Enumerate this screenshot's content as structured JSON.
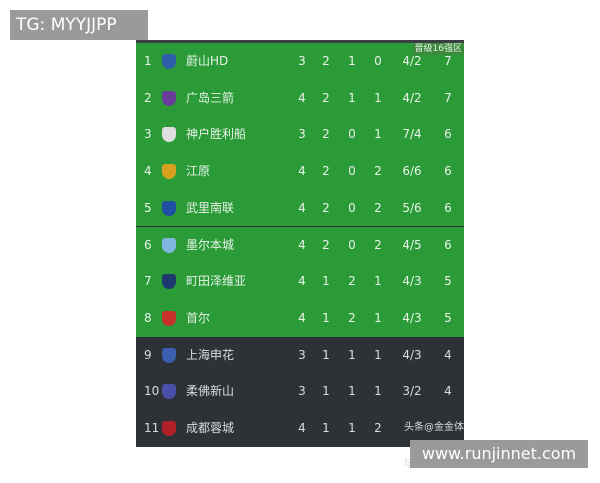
{
  "watermarks": {
    "top_left": "TG: MYYJJPP",
    "bottom_right": "www.runjinnet.com",
    "last_row": "头条@金金体坛"
  },
  "zone_label": "晋级16强区",
  "colors": {
    "qualify": "#2a9b37",
    "other": "#2d3237"
  },
  "rows": [
    {
      "rank": "1",
      "team": "蔚山HD",
      "p": "3",
      "w": "2",
      "d": "1",
      "l": "0",
      "gd": "4/2",
      "pts": "7",
      "logo": "#2c5fa8",
      "zone": "qualify"
    },
    {
      "rank": "2",
      "team": "广岛三箭",
      "p": "4",
      "w": "2",
      "d": "1",
      "l": "1",
      "gd": "4/2",
      "pts": "7",
      "logo": "#6a3d9a",
      "zone": "qualify"
    },
    {
      "rank": "3",
      "team": "神户胜利船",
      "p": "3",
      "w": "2",
      "d": "0",
      "l": "1",
      "gd": "7/4",
      "pts": "6",
      "logo": "#ddd",
      "zone": "qualify"
    },
    {
      "rank": "4",
      "team": "江原",
      "p": "4",
      "w": "2",
      "d": "0",
      "l": "2",
      "gd": "6/6",
      "pts": "6",
      "logo": "#d9a020",
      "zone": "qualify"
    },
    {
      "rank": "5",
      "team": "武里南联",
      "p": "4",
      "w": "2",
      "d": "0",
      "l": "2",
      "gd": "5/6",
      "pts": "6",
      "logo": "#1f4fa0",
      "zone": "qualify"
    },
    {
      "rank": "6",
      "team": "墨尔本城",
      "p": "4",
      "w": "2",
      "d": "0",
      "l": "2",
      "gd": "4/5",
      "pts": "6",
      "logo": "#7fb6e0",
      "zone": "qualify"
    },
    {
      "rank": "7",
      "team": "町田泽维亚",
      "p": "4",
      "w": "1",
      "d": "2",
      "l": "1",
      "gd": "4/3",
      "pts": "5",
      "logo": "#1d3a6e",
      "zone": "qualify"
    },
    {
      "rank": "8",
      "team": "首尔",
      "p": "4",
      "w": "1",
      "d": "2",
      "l": "1",
      "gd": "4/3",
      "pts": "5",
      "logo": "#c8302a",
      "zone": "qualify"
    },
    {
      "rank": "9",
      "team": "上海申花",
      "p": "3",
      "w": "1",
      "d": "1",
      "l": "1",
      "gd": "4/3",
      "pts": "4",
      "logo": "#3a5fb0",
      "zone": "other"
    },
    {
      "rank": "10",
      "team": "柔佛新山",
      "p": "3",
      "w": "1",
      "d": "1",
      "l": "1",
      "gd": "3/2",
      "pts": "4",
      "logo": "#4a4fa8",
      "zone": "other"
    },
    {
      "rank": "11",
      "team": "成都蓉城",
      "p": "4",
      "w": "1",
      "d": "1",
      "l": "2",
      "gd": "",
      "pts": "",
      "logo": "#b02028",
      "zone": "other"
    }
  ]
}
